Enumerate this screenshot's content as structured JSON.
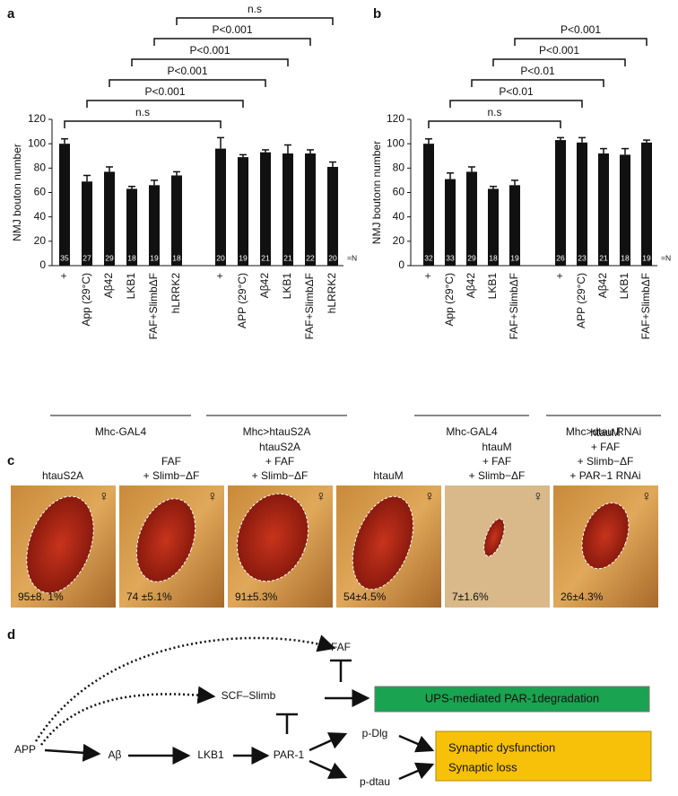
{
  "panels": {
    "a": "a",
    "b": "b",
    "c": "c",
    "d": "d"
  },
  "chart_data": [
    {
      "type": "bar",
      "ylabel": "NMJ bouton number",
      "ylim": [
        0,
        120
      ],
      "yticks": [
        0,
        20,
        40,
        60,
        80,
        100,
        120
      ],
      "color": "#111111",
      "n_suffix": "=N",
      "groups": [
        {
          "name": "Mhc-GAL4",
          "categories": [
            "+",
            "App (29°C)",
            "Aβ42",
            "LKB1",
            "FAF+SlimbΔF",
            "hLRRK2"
          ],
          "values": [
            100,
            69,
            77,
            63,
            66,
            74
          ],
          "errors": [
            4,
            5,
            4,
            2,
            4,
            3
          ],
          "n": [
            35,
            27,
            29,
            18,
            19,
            18
          ]
        },
        {
          "name": "Mhc>htauS2A",
          "categories": [
            "+",
            "APP (29°C)",
            "Aβ42",
            "LKB1",
            "FAF+SlimbΔF",
            "hLRRK2"
          ],
          "values": [
            96,
            89,
            93,
            92,
            92,
            81
          ],
          "errors": [
            9,
            2,
            2,
            7,
            3,
            4
          ],
          "n": [
            20,
            19,
            21,
            21,
            22,
            20
          ]
        }
      ],
      "comparisons": [
        "n.s",
        "P<0.001",
        "P<0.001",
        "P<0.001",
        "P<0.001",
        "n.s"
      ]
    },
    {
      "type": "bar",
      "ylabel": "NMJ boutonn number",
      "ylim": [
        0,
        120
      ],
      "yticks": [
        0,
        20,
        40,
        60,
        80,
        100,
        120
      ],
      "color": "#111111",
      "n_suffix": "=N",
      "groups": [
        {
          "name": "Mhc-GAL4",
          "categories": [
            "+",
            "App (29°C)",
            "Aβ42",
            "LKB1",
            "FAF+SlimbΔF"
          ],
          "values": [
            100,
            71,
            77,
            63,
            66
          ],
          "errors": [
            4,
            5,
            4,
            2,
            4
          ],
          "n": [
            32,
            33,
            29,
            18,
            19
          ]
        },
        {
          "name": "Mhc>dtau RNAi",
          "categories": [
            "+",
            "APP (29°C)",
            "Aβ42",
            "LKB1",
            "FAF+SlimbΔF"
          ],
          "values": [
            103,
            101,
            92,
            91,
            101
          ],
          "errors": [
            2,
            4,
            4,
            5,
            2
          ],
          "n": [
            26,
            23,
            21,
            18,
            19
          ]
        }
      ],
      "comparisons": [
        "n.s",
        "P<0.01",
        "P<0.01",
        "P<0.001",
        "P<0.001"
      ]
    }
  ],
  "panel_c": {
    "sex_symbol": "♀",
    "images": [
      {
        "title": [
          "htauS2A"
        ],
        "percent": "95±8. 1%"
      },
      {
        "title": [
          "FAF",
          "+ Slimb−ΔF"
        ],
        "percent": "74 ±5.1%"
      },
      {
        "title": [
          "htauS2A",
          "+ FAF",
          "+ Slimb−ΔF"
        ],
        "percent": "91±5.3%"
      },
      {
        "title": [
          "htauM"
        ],
        "percent": "54±4.5%"
      },
      {
        "title": [
          "htauM",
          "+ FAF",
          "+ Slimb−ΔF"
        ],
        "percent": "7±1.6%"
      },
      {
        "title": [
          "htauM",
          "+ FAF",
          "+ Slimb−ΔF",
          "+ PAR−1 RNAi"
        ],
        "percent": "26±4.3%"
      }
    ]
  },
  "panel_d": {
    "nodes": {
      "app": "APP",
      "abeta": "Aβ",
      "lkb1": "LKB1",
      "par1": "PAR-1",
      "scf": "SCF–Slimb",
      "faf": "FAF",
      "pdlg": "p-Dlg",
      "pdtau": "p-dtau"
    },
    "boxes": {
      "ups": "UPS-mediated PAR-1degradation",
      "dysfunction": "Synaptic dysfunction",
      "loss": "Synaptic loss"
    }
  }
}
